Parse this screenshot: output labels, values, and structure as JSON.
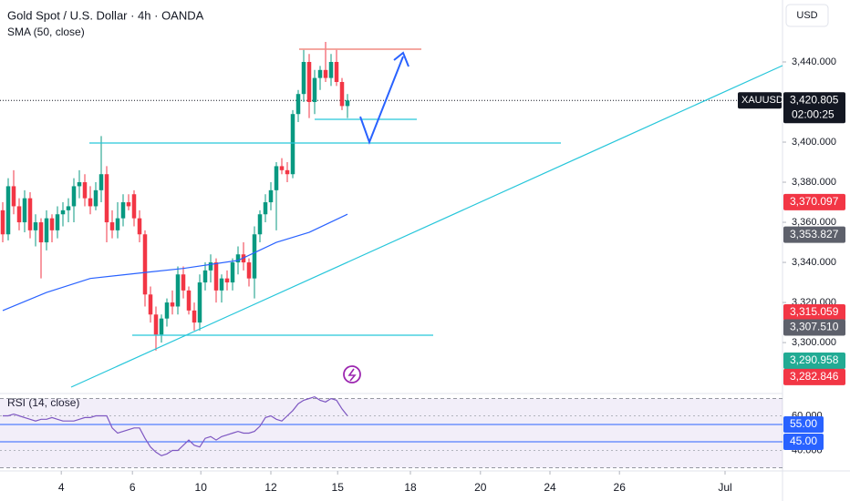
{
  "chart_data": {
    "type": "candlestick",
    "title": "Gold Spot / U.S. Dollar · 4h · OANDA",
    "currency": "USD",
    "open": [
      3366,
      3354,
      3378,
      3368,
      3360,
      3372,
      3356,
      3360,
      3350,
      3362,
      3356,
      3364,
      3366,
      3368,
      3378,
      3380,
      3372,
      3368,
      3376,
      3384,
      3360,
      3356,
      3362,
      3370,
      3374,
      3362,
      3354,
      3324,
      3314,
      3304,
      3312,
      3320,
      3318,
      3334,
      3326,
      3316,
      3310,
      3330,
      3336,
      3340,
      3326,
      3332,
      3330,
      3340,
      3344,
      3340,
      3332,
      3354,
      3364,
      3370,
      3376,
      3388,
      3386,
      3384,
      3414,
      3424,
      3440,
      3420,
      3432,
      3436,
      3432,
      3440,
      3430,
      3418
    ],
    "high": [
      3370,
      3382,
      3386,
      3372,
      3376,
      3375,
      3364,
      3362,
      3366,
      3364,
      3368,
      3370,
      3372,
      3382,
      3386,
      3384,
      3378,
      3380,
      3403,
      3388,
      3366,
      3370,
      3374,
      3374,
      3376,
      3366,
      3356,
      3328,
      3318,
      3314,
      3322,
      3326,
      3338,
      3338,
      3328,
      3320,
      3334,
      3340,
      3344,
      3342,
      3334,
      3336,
      3342,
      3348,
      3350,
      3342,
      3358,
      3366,
      3374,
      3380,
      3390,
      3392,
      3390,
      3416,
      3426,
      3446,
      3444,
      3436,
      3438,
      3450,
      3444,
      3446,
      3432,
      3424
    ],
    "low": [
      3350,
      3351,
      3364,
      3356,
      3355,
      3352,
      3348,
      3332,
      3346,
      3350,
      3352,
      3358,
      3360,
      3360,
      3372,
      3368,
      3364,
      3366,
      3370,
      3350,
      3352,
      3352,
      3358,
      3366,
      3358,
      3350,
      3318,
      3310,
      3296,
      3300,
      3308,
      3314,
      3314,
      3322,
      3314,
      3306,
      3306,
      3326,
      3330,
      3320,
      3320,
      3326,
      3326,
      3334,
      3336,
      3328,
      3322,
      3350,
      3360,
      3366,
      3356,
      3384,
      3380,
      3382,
      3410,
      3420,
      3412,
      3414,
      3426,
      3430,
      3428,
      3428,
      3416,
      3412
    ],
    "close": [
      3354,
      3378,
      3368,
      3360,
      3372,
      3356,
      3360,
      3350,
      3362,
      3356,
      3364,
      3366,
      3368,
      3378,
      3380,
      3372,
      3368,
      3376,
      3384,
      3360,
      3356,
      3362,
      3370,
      3368,
      3362,
      3354,
      3324,
      3314,
      3304,
      3312,
      3320,
      3318,
      3334,
      3326,
      3316,
      3310,
      3330,
      3336,
      3340,
      3326,
      3332,
      3330,
      3340,
      3344,
      3340,
      3332,
      3354,
      3364,
      3370,
      3376,
      3388,
      3386,
      3384,
      3414,
      3424,
      3440,
      3420,
      3432,
      3436,
      3432,
      3440,
      3430,
      3418,
      3420.805
    ],
    "up_color": "#089981",
    "down_color": "#f23645",
    "sma": {
      "name": "SMA (50, close)",
      "color": "#2962ff",
      "x": [
        0,
        8,
        16,
        26,
        33,
        43,
        50,
        56,
        63
      ],
      "values": [
        3316,
        3325,
        3332,
        3335,
        3337,
        3341,
        3350,
        3355,
        3364
      ]
    },
    "xlim": [
      -0.5,
      142.5
    ],
    "xticks": [
      {
        "value": 10.7,
        "label": "4"
      },
      {
        "value": 23.7,
        "label": "6"
      },
      {
        "value": 36.2,
        "label": "10"
      },
      {
        "value": 49,
        "label": "12"
      },
      {
        "value": 61.2,
        "label": "15"
      },
      {
        "value": 74.5,
        "label": "18"
      },
      {
        "value": 87.3,
        "label": "20"
      },
      {
        "value": 100,
        "label": "24"
      },
      {
        "value": 112.7,
        "label": "26"
      },
      {
        "value": 132,
        "label": "Jul"
      }
    ],
    "ylim": [
      3275.5,
      3470.9
    ],
    "yticks": [
      {
        "value": 3300,
        "label": "3,300.000"
      },
      {
        "value": 3320,
        "label": "3,320.000"
      },
      {
        "value": 3340,
        "label": "3,340.000"
      },
      {
        "value": 3360,
        "label": "3,360.000"
      },
      {
        "value": 3380,
        "label": "3,380.000"
      },
      {
        "value": 3400,
        "label": "3,400.000"
      },
      {
        "value": 3440,
        "label": "3,440.000"
      }
    ],
    "last_price": {
      "symbol": "XAUUSD",
      "value": 3420.805,
      "label": "3,420.805",
      "countdown": "02:00:25"
    },
    "price_badges": [
      {
        "value": 3370.097,
        "label": "3,370.097",
        "color": "#f23645"
      },
      {
        "value": 3353.827,
        "label": "3,353.827",
        "color": "#5d606b"
      },
      {
        "value": 3315.059,
        "label": "3,315.059",
        "color": "#f23645"
      },
      {
        "value": 3307.51,
        "label": "3,307.510",
        "color": "#5d606b"
      },
      {
        "value": 3290.958,
        "label": "3,290.958",
        "color": "#22ab94"
      },
      {
        "value": 3282.846,
        "label": "3,282.846",
        "color": "#f23645"
      }
    ],
    "rsi": {
      "name": "RSI (14, close)",
      "color": "#7e57c2",
      "values": [
        60,
        60,
        61,
        60,
        59,
        58,
        57,
        58,
        58,
        59,
        58,
        57,
        57,
        57,
        58,
        59,
        59,
        60,
        60,
        60,
        53,
        50,
        51,
        52,
        53,
        53,
        47,
        42,
        39,
        37,
        38,
        40,
        40,
        43,
        46,
        43,
        42,
        47,
        48,
        46,
        48,
        49,
        50,
        51,
        50,
        50,
        51,
        54,
        59,
        60,
        58,
        57,
        60,
        63,
        67,
        69,
        70,
        71,
        69,
        68,
        70,
        69,
        64,
        60
      ],
      "ylim": [
        29.2,
        71.3
      ],
      "band": [
        70,
        30
      ],
      "yticks": [
        {
          "value": 60,
          "label": "60.000"
        },
        {
          "value": 40,
          "label": "40.000"
        }
      ],
      "levels": [
        {
          "value": 55,
          "label": "55.00"
        },
        {
          "value": 45,
          "label": "45.00"
        }
      ],
      "level_color": "#2962ff"
    }
  }
}
